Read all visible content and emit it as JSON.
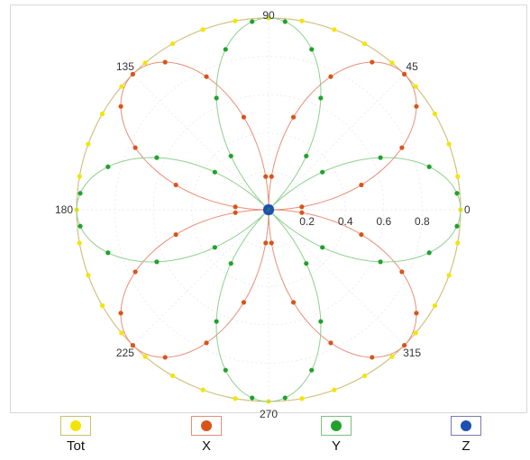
{
  "chart_data": {
    "type": "polar-scatter",
    "title": "",
    "angle_ticks": [
      "0",
      "45",
      "90",
      "135",
      "180",
      "225",
      "270",
      "315"
    ],
    "radial_ticks": [
      "0.2",
      "0.4",
      "0.6",
      "0.8"
    ],
    "r_range": [
      0,
      1
    ],
    "grid": true,
    "legend_placement": "bottom",
    "series": [
      {
        "name": "Tot",
        "color": "#f2e600",
        "line_color": "#d9c77a",
        "swatch_border": "#c9c36a",
        "curve": "constant",
        "amplitude": 1.0,
        "theta_deg": [
          0,
          10,
          20,
          30,
          40,
          50,
          60,
          70,
          80,
          90,
          100,
          110,
          120,
          130,
          140,
          150,
          160,
          170,
          180,
          190,
          200,
          210,
          220,
          230,
          240,
          250,
          260,
          270,
          280,
          290,
          300,
          310,
          320,
          330,
          340,
          350
        ]
      },
      {
        "name": "X",
        "color": "#d9541a",
        "line_color": "#e88f7a",
        "swatch_border": "#e0907a",
        "curve": "abs-sin2",
        "amplitude": 1.0,
        "theta_deg": [
          5,
          15,
          25,
          35,
          45,
          55,
          65,
          75,
          85,
          95,
          105,
          115,
          125,
          135,
          145,
          155,
          165,
          175,
          185,
          195,
          205,
          215,
          225,
          235,
          245,
          255,
          265,
          275,
          285,
          295,
          305,
          315,
          325,
          335,
          345,
          355
        ]
      },
      {
        "name": "Y",
        "color": "#22a12e",
        "line_color": "#8fd08f",
        "swatch_border": "#80c080",
        "curve": "abs-cos2",
        "amplitude": 1.0,
        "theta_deg": [
          5,
          15,
          25,
          35,
          45,
          55,
          65,
          75,
          85,
          95,
          105,
          115,
          125,
          135,
          145,
          155,
          165,
          175,
          185,
          195,
          205,
          215,
          225,
          235,
          245,
          255,
          265,
          275,
          285,
          295,
          305,
          315,
          325,
          335,
          345,
          355
        ]
      },
      {
        "name": "Z",
        "color": "#1f4fb0",
        "line_color": "#1f4fb0",
        "swatch_border": "#7a7ab0",
        "curve": "constant",
        "amplitude": 0.02,
        "theta_deg": [
          0,
          30,
          60,
          90,
          120,
          150,
          180,
          210,
          240,
          270,
          300,
          330
        ]
      }
    ]
  }
}
